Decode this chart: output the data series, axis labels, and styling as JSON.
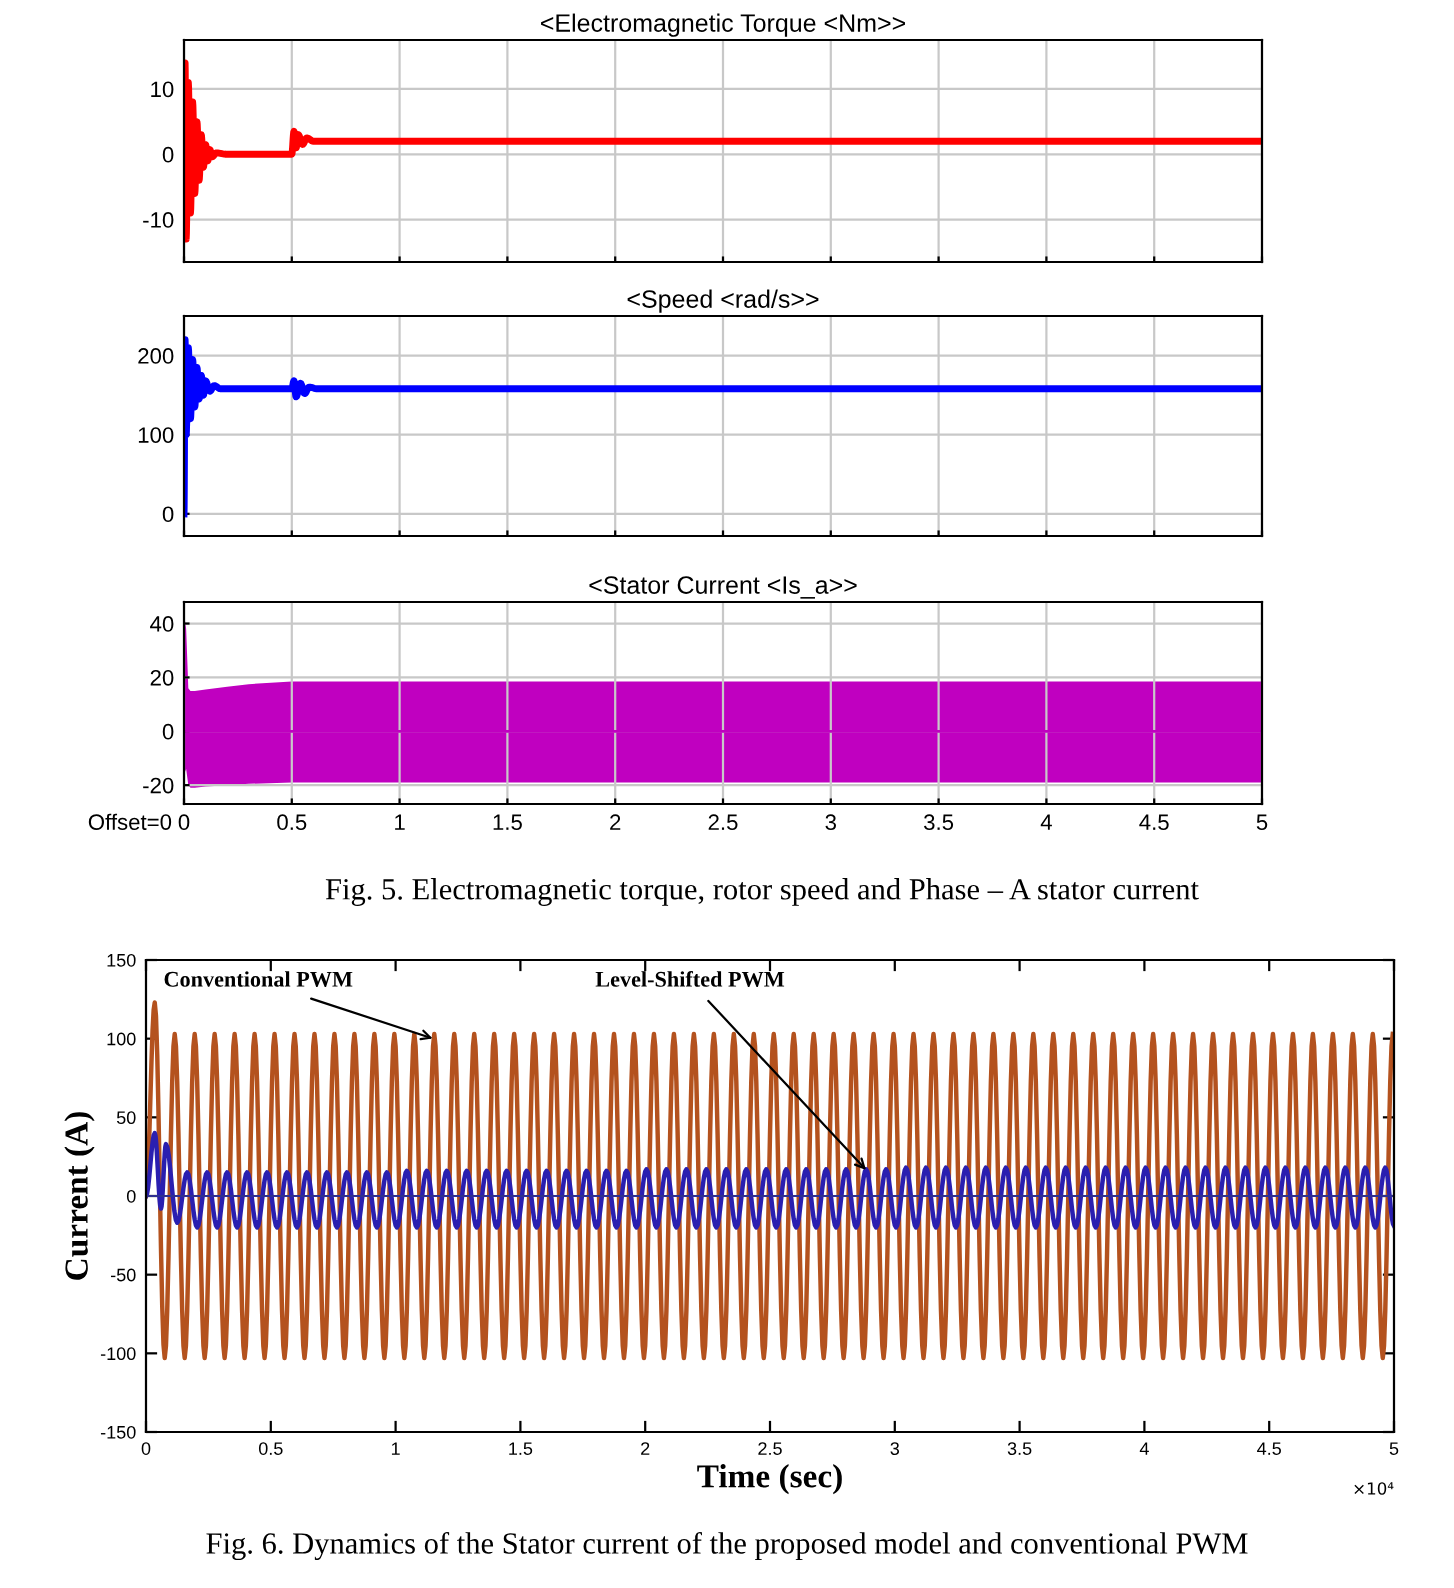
{
  "chart_data": [
    {
      "type": "line",
      "title": "<Electromagnetic Torque <Nm>>",
      "xlim": [
        0,
        5
      ],
      "xticks": [
        0,
        0.5,
        1,
        1.5,
        2,
        2.5,
        3,
        3.5,
        4,
        4.5,
        5
      ],
      "ylim": [
        -16.5,
        17.5
      ],
      "yticks": [
        -10,
        0,
        10
      ],
      "grid": true,
      "tick_labels": "y",
      "series": [
        {
          "color": "#ff0000",
          "x": [
            0,
            0.005,
            0.01,
            0.02,
            0.03,
            0.04,
            0.05,
            0.06,
            0.07,
            0.08,
            0.09,
            0.1,
            0.11,
            0.12,
            0.13,
            0.15,
            0.2,
            0.5,
            0.51,
            0.52,
            0.53,
            0.55,
            0.57,
            0.6,
            5
          ],
          "values": [
            0,
            14,
            -13,
            11,
            -9,
            8,
            -6,
            5,
            -4,
            3,
            -2,
            1.5,
            -1,
            0.7,
            -0.4,
            0.2,
            0,
            0,
            3.5,
            1,
            3,
            1.5,
            2.5,
            2,
            2
          ]
        }
      ]
    },
    {
      "type": "line",
      "title": "<Speed <rad/s>>",
      "xlim": [
        0,
        5
      ],
      "xticks": [
        0,
        0.5,
        1,
        1.5,
        2,
        2.5,
        3,
        3.5,
        4,
        4.5,
        5
      ],
      "ylim": [
        -28,
        250
      ],
      "yticks": [
        0,
        100,
        200
      ],
      "grid": true,
      "tick_labels": "y",
      "series": [
        {
          "color": "#0000ff",
          "x": [
            0,
            0.005,
            0.01,
            0.02,
            0.03,
            0.04,
            0.05,
            0.06,
            0.07,
            0.08,
            0.09,
            0.1,
            0.12,
            0.14,
            0.17,
            0.5,
            0.51,
            0.52,
            0.54,
            0.56,
            0.58,
            0.62,
            5
          ],
          "values": [
            0,
            220,
            100,
            210,
            120,
            195,
            135,
            185,
            145,
            175,
            150,
            168,
            155,
            162,
            158,
            158,
            168,
            148,
            165,
            152,
            160,
            158,
            158
          ]
        }
      ]
    },
    {
      "type": "line",
      "title": "<Stator Current <Is_a>>",
      "xlim": [
        0,
        5
      ],
      "xticks": [
        0,
        0.5,
        1,
        1.5,
        2,
        2.5,
        3,
        3.5,
        4,
        4.5,
        5
      ],
      "ylim": [
        -27,
        48
      ],
      "yticks": [
        -20,
        0,
        20,
        40
      ],
      "grid": true,
      "series": [
        {
          "color": "#c000c0",
          "x": [
            0,
            0.005,
            0.01,
            0.02,
            0.03,
            0.05,
            0.1,
            0.2,
            0.3,
            0.5,
            1,
            1.5,
            2,
            2.5,
            3,
            3.5,
            4,
            4.5,
            5
          ],
          "values": [
            0,
            0,
            0,
            0,
            0,
            0,
            0,
            0,
            0,
            0,
            0,
            0,
            0,
            0,
            0,
            0,
            0,
            0,
            0
          ],
          "upper": [
            0,
            41,
            38,
            16,
            15,
            15,
            15.5,
            16.5,
            17.5,
            18.5,
            18.5,
            18.5,
            18.5,
            18.5,
            18.5,
            18.5,
            18.5,
            18.5,
            18.5
          ],
          "lower": [
            0,
            -15,
            -14,
            -20,
            -21,
            -21,
            -20.5,
            -20,
            -19.5,
            -19,
            -19,
            -19,
            -19,
            -19,
            -19,
            -19,
            -19,
            -19,
            -19
          ]
        }
      ],
      "annotations": [
        "Offset=0",
        "Fig. 5. Electromagnetic torque, rotor speed and Phase – A stator current"
      ]
    },
    {
      "type": "line",
      "xlabel": "Time (sec)",
      "ylabel": "Current (A)",
      "xlim": [
        0,
        5
      ],
      "xticks": [
        0,
        0.5,
        1,
        1.5,
        2,
        2.5,
        3,
        3.5,
        4,
        4.5,
        5
      ],
      "ylim": [
        -150,
        150
      ],
      "yticks": [
        -150,
        -100,
        -50,
        0,
        50,
        100,
        150
      ],
      "grid": false,
      "ref_lines": [
        {
          "axis": "y",
          "value": 0,
          "color": "#303090"
        }
      ],
      "series": [
        {
          "color": "#b4521e",
          "x": [
            0,
            0.035,
            0.075,
            0.115,
            0.155,
            0.195,
            0.235,
            0.275,
            0.315,
            0.355,
            0.395,
            0.435,
            0.475,
            0.515,
            0.555,
            0.595,
            0.635,
            0.675,
            0.715,
            0.755,
            0.795,
            0.835,
            0.875,
            0.915,
            0.955,
            0.995,
            1.035,
            1.075,
            1.115,
            1.155,
            1.195,
            1.235,
            1.275,
            1.315,
            1.355,
            1.395,
            1.435,
            1.475,
            1.515,
            1.555,
            1.595,
            1.635,
            1.675,
            1.715,
            1.755,
            1.795,
            1.835,
            1.875,
            1.915,
            1.955,
            1.995,
            2.035,
            2.075,
            2.115,
            2.155,
            2.195,
            2.235,
            2.275,
            2.315,
            2.355,
            2.395,
            2.435,
            2.475,
            2.515,
            2.555,
            2.595,
            2.635,
            2.675,
            2.715,
            2.755,
            2.795,
            2.835,
            2.875,
            2.915,
            2.955,
            2.995,
            3.035,
            3.075,
            3.115,
            3.155,
            3.195,
            3.235,
            3.275,
            3.315,
            3.355,
            3.395,
            3.435,
            3.475,
            3.515,
            3.555,
            3.595,
            3.635,
            3.675,
            3.715,
            3.755,
            3.795,
            3.835,
            3.875,
            3.915,
            3.955,
            3.995,
            4.035,
            4.075,
            4.115,
            4.155,
            4.195,
            4.235,
            4.275,
            4.315,
            4.355,
            4.395,
            4.435,
            4.475,
            4.515,
            4.555,
            4.595,
            4.635,
            4.675,
            4.715,
            4.755,
            4.795,
            4.835,
            4.875,
            4.915,
            4.955,
            4.995
          ],
          "values": [
            0,
            123,
            -103,
            103,
            -103,
            103,
            -103,
            103,
            -103,
            103,
            -103,
            103,
            -103,
            103,
            -103,
            103,
            -103,
            103,
            -103,
            103,
            -103,
            103,
            -103,
            103,
            -103,
            103,
            -103,
            103,
            -103,
            103,
            -103,
            103,
            -103,
            103,
            -103,
            103,
            -103,
            103,
            -103,
            103,
            -103,
            103,
            -103,
            103,
            -103,
            103,
            -103,
            103,
            -103,
            103,
            -103,
            103,
            -103,
            103,
            -103,
            103,
            -103,
            103,
            -103,
            103,
            -103,
            103,
            -103,
            103,
            -103,
            103,
            -103,
            103,
            -103,
            103,
            -103,
            103,
            -103,
            103,
            -103,
            103,
            -103,
            103,
            -103,
            103,
            -103,
            103,
            -103,
            103,
            -103,
            103,
            -103,
            103,
            -103,
            103,
            -103,
            103,
            -103,
            103,
            -103,
            103,
            -103,
            103,
            -103,
            103,
            -103,
            103,
            -103,
            103,
            -103,
            103,
            -103,
            103,
            -103,
            103,
            -103,
            103,
            -103,
            103,
            -103,
            103,
            -103,
            103,
            -103,
            103,
            -103,
            103,
            -103,
            103,
            -103,
            103
          ]
        },
        {
          "color": "#2a1fb0",
          "x": [
            0,
            0.035,
            0.06,
            0.08,
            0.125,
            0.165,
            0.205,
            0.245,
            0.285,
            0.325,
            0.365,
            0.405,
            0.445,
            0.485,
            0.525,
            0.565,
            0.605,
            0.645,
            0.685,
            0.725,
            0.765,
            0.805,
            0.845,
            0.885,
            0.925,
            0.965,
            1.005,
            1.045,
            1.085,
            1.125,
            1.165,
            1.205,
            1.245,
            1.285,
            1.325,
            1.365,
            1.405,
            1.445,
            1.485,
            1.525,
            1.565,
            1.605,
            1.645,
            1.685,
            1.725,
            1.765,
            1.805,
            1.845,
            1.885,
            1.925,
            1.965,
            2.005,
            2.045,
            2.085,
            2.125,
            2.165,
            2.205,
            2.245,
            2.285,
            2.325,
            2.365,
            2.405,
            2.445,
            2.485,
            2.525,
            2.565,
            2.605,
            2.645,
            2.685,
            2.725,
            2.765,
            2.805,
            2.845,
            2.885,
            2.925,
            2.965,
            3.005,
            3.045,
            3.085,
            3.125,
            3.165,
            3.205,
            3.245,
            3.285,
            3.325,
            3.365,
            3.405,
            3.445,
            3.485,
            3.525,
            3.565,
            3.605,
            3.645,
            3.685,
            3.725,
            3.765,
            3.805,
            3.845,
            3.885,
            3.925,
            3.965,
            4.005,
            4.045,
            4.085,
            4.125,
            4.165,
            4.205,
            4.245,
            4.285,
            4.325,
            4.365,
            4.405,
            4.445,
            4.485,
            4.525,
            4.565,
            4.605,
            4.645,
            4.685,
            4.725,
            4.765,
            4.805,
            4.845,
            4.885,
            4.925,
            4.965,
            5
          ],
          "values": [
            0,
            40,
            -8,
            33,
            -17,
            15,
            -20,
            15,
            -20,
            15,
            -20,
            15,
            -20,
            15,
            -20,
            15,
            -20,
            15,
            -20,
            15,
            -20,
            15,
            -20,
            15,
            -20,
            15,
            -20,
            16,
            -20,
            16,
            -20,
            16,
            -20,
            16,
            -20,
            16,
            -20,
            16,
            -20,
            16,
            -20,
            16,
            -20,
            16,
            -20,
            16,
            -20,
            16,
            -20,
            16,
            -20,
            17,
            -20,
            17,
            -20,
            17,
            -20,
            17,
            -20,
            17,
            -20,
            17,
            -20,
            17,
            -20,
            17,
            -20,
            17,
            -20,
            17,
            -20,
            17,
            -20,
            17,
            -20,
            17,
            -20,
            18,
            -20,
            18,
            -20,
            18,
            -20,
            18,
            -20,
            18,
            -20,
            18,
            -20,
            18,
            -20,
            18,
            -20,
            18,
            -20,
            18,
            -20,
            18,
            -20,
            18,
            -20,
            18,
            -20,
            18,
            -20,
            18,
            -20,
            18,
            -20,
            18,
            -20,
            18,
            -20,
            18,
            -20,
            18,
            -20,
            18,
            -20,
            18,
            -20,
            18,
            -20,
            18,
            -20,
            18,
            -19
          ]
        }
      ],
      "annotations": [
        "×10⁴",
        "Fig. 6. Dynamics of the Stator current of the proposed model and conventional PWM",
        {
          "text": "Conventional PWM",
          "x": 1.17,
          "y": 99
        },
        {
          "text": "Level-Shifted PWM",
          "x": 2.9,
          "y": 14
        }
      ]
    }
  ]
}
